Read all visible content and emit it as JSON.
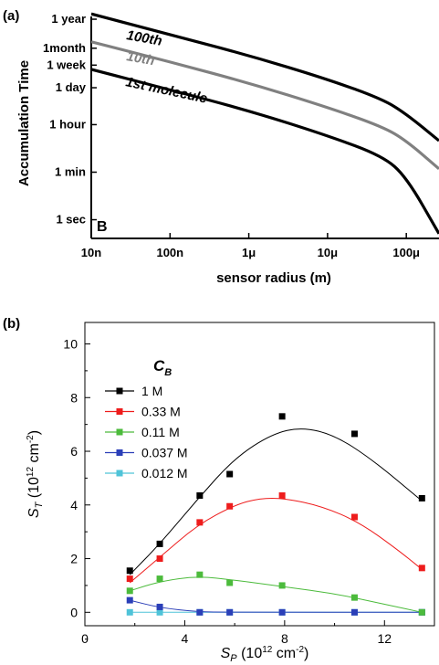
{
  "panel_a": {
    "label": "(a)",
    "inset_label": "B",
    "ylabel": "Accumulation Time",
    "xlabel": "sensor radius (m)",
    "line_labels": [
      "100th",
      "10th",
      "1st molecule"
    ]
  },
  "panel_b": {
    "label": "(b)",
    "legend_title": "C",
    "legend_title_sub": "B",
    "ylabel_main": "S",
    "ylabel_sub": "T",
    "ylabel_unit_pre": " (10",
    "ylabel_unit_exp": "12",
    "ylabel_unit_mid": " cm",
    "ylabel_unit_exp2": "-2",
    "ylabel_unit_post": ")",
    "xlabel_main": "S",
    "xlabel_sub": "P",
    "xlabel_unit_pre": " (10",
    "xlabel_unit_exp": "12",
    "xlabel_unit_mid": " cm",
    "xlabel_unit_exp2": "-2",
    "xlabel_unit_post": ")"
  },
  "colors": {
    "black": "#000000",
    "gray": "#808080",
    "s1M": "#000000",
    "s033M": "#ee1c1c",
    "s011M": "#4cbb3c",
    "s0037M": "#2b3fb8",
    "s0012M": "#4fc3d8"
  },
  "chart_data": [
    {
      "type": "line",
      "xscale": "log",
      "yscale": "log",
      "xlabel": "sensor radius (m)",
      "ylabel": "Accumulation Time",
      "x_tick_labels": [
        "10n",
        "100n",
        "1μ",
        "10μ",
        "100μ"
      ],
      "x_ticks_m": [
        1e-08,
        1e-07,
        1e-06,
        1e-05,
        0.0001
      ],
      "y_tick_labels": [
        "1 year",
        "1month",
        "1 week",
        "1 day",
        "1 hour",
        "1 min",
        "1 sec"
      ],
      "y_ticks_s": [
        31536000,
        2592000,
        604800,
        86400,
        3600,
        60,
        1
      ],
      "xlim_m": [
        1e-08,
        0.00026
      ],
      "ylim_s": [
        0.2,
        40000000
      ],
      "series": [
        {
          "name": "100th",
          "color": "#000000",
          "x": [
            1e-08,
            1e-07,
            1e-06,
            1e-05,
            5e-05,
            0.0001,
            0.00026
          ],
          "y": [
            50000000,
            8300000,
            1400000,
            180000,
            32000,
            9000,
            900
          ]
        },
        {
          "name": "10th",
          "color": "#808080",
          "x": [
            1e-08,
            1e-07,
            1e-06,
            1e-05,
            5e-05,
            0.0001,
            0.00026
          ],
          "y": [
            4500000,
            800000,
            130000,
            16000,
            3000,
            900,
            80
          ]
        },
        {
          "name": "1st molecule",
          "color": "#000000",
          "x": [
            1e-08,
            1e-07,
            1e-06,
            1e-05,
            5e-05,
            0.0001,
            0.00026
          ],
          "y": [
            420000,
            72000,
            12000,
            1400,
            240,
            40,
            0.3
          ]
        }
      ]
    },
    {
      "type": "scatter",
      "xlabel": "S_P (10^12 cm^-2)",
      "ylabel": "S_T (10^12 cm^-2)",
      "xlim": [
        0,
        14
      ],
      "ylim": [
        -0.5,
        10.8
      ],
      "x_ticks": [
        0,
        4,
        8,
        12
      ],
      "y_ticks": [
        0,
        2,
        4,
        6,
        8,
        10
      ],
      "legend_title": "C_B",
      "legend_position": "top-left",
      "series": [
        {
          "name": "1 M",
          "color": "#000000",
          "x": [
            1.8,
            3.0,
            4.6,
            5.8,
            7.9,
            10.8,
            13.5
          ],
          "y": [
            1.55,
            2.55,
            4.35,
            5.15,
            7.3,
            6.65,
            4.25
          ],
          "fit": [
            [
              1.8,
              1.4
            ],
            [
              3.0,
              2.55
            ],
            [
              4.5,
              4.2
            ],
            [
              6.0,
              5.75
            ],
            [
              7.5,
              6.65
            ],
            [
              8.7,
              6.9
            ],
            [
              10.0,
              6.6
            ],
            [
              11.5,
              5.7
            ],
            [
              13.5,
              4.15
            ]
          ]
        },
        {
          "name": "0.33 M",
          "color": "#ee1c1c",
          "x": [
            1.8,
            3.0,
            4.6,
            5.8,
            7.9,
            10.8,
            13.5
          ],
          "y": [
            1.25,
            2.0,
            3.35,
            3.95,
            4.35,
            3.55,
            1.65
          ],
          "fit": [
            [
              1.8,
              1.1
            ],
            [
              3.0,
              2.05
            ],
            [
              4.5,
              3.25
            ],
            [
              6.0,
              4.0
            ],
            [
              7.0,
              4.25
            ],
            [
              8.0,
              4.25
            ],
            [
              9.5,
              3.95
            ],
            [
              11.0,
              3.35
            ],
            [
              12.5,
              2.35
            ],
            [
              13.5,
              1.6
            ]
          ]
        },
        {
          "name": "0.11 M",
          "color": "#4cbb3c",
          "x": [
            1.8,
            3.0,
            4.6,
            5.8,
            7.9,
            10.8,
            13.5
          ],
          "y": [
            0.8,
            1.25,
            1.4,
            1.1,
            1.0,
            0.55,
            0.0
          ],
          "fit": [
            [
              1.8,
              0.8
            ],
            [
              3.0,
              1.15
            ],
            [
              4.5,
              1.35
            ],
            [
              6.0,
              1.2
            ],
            [
              8.0,
              0.95
            ],
            [
              10.0,
              0.7
            ],
            [
              12.0,
              0.3
            ],
            [
              13.5,
              0.0
            ]
          ]
        },
        {
          "name": "0.037 M",
          "color": "#2b3fb8",
          "x": [
            1.8,
            3.0,
            4.6,
            5.8,
            7.9,
            10.8,
            13.5
          ],
          "y": [
            0.45,
            0.2,
            0.0,
            0.0,
            0.0,
            0.0,
            0.0
          ],
          "fit": [
            [
              1.8,
              0.45
            ],
            [
              3.0,
              0.17
            ],
            [
              4.5,
              0.02
            ],
            [
              5.8,
              0.0
            ],
            [
              13.5,
              0.0
            ]
          ]
        },
        {
          "name": "0.012 M",
          "color": "#4fc3d8",
          "x": [
            1.8,
            3.0,
            4.6,
            5.8,
            7.9,
            10.8,
            13.5
          ],
          "y": [
            0.0,
            0.0,
            0.0,
            0.0,
            0.0,
            0.0,
            0.0
          ],
          "fit": [
            [
              1.8,
              0.0
            ],
            [
              13.5,
              0.0
            ]
          ]
        }
      ]
    }
  ]
}
